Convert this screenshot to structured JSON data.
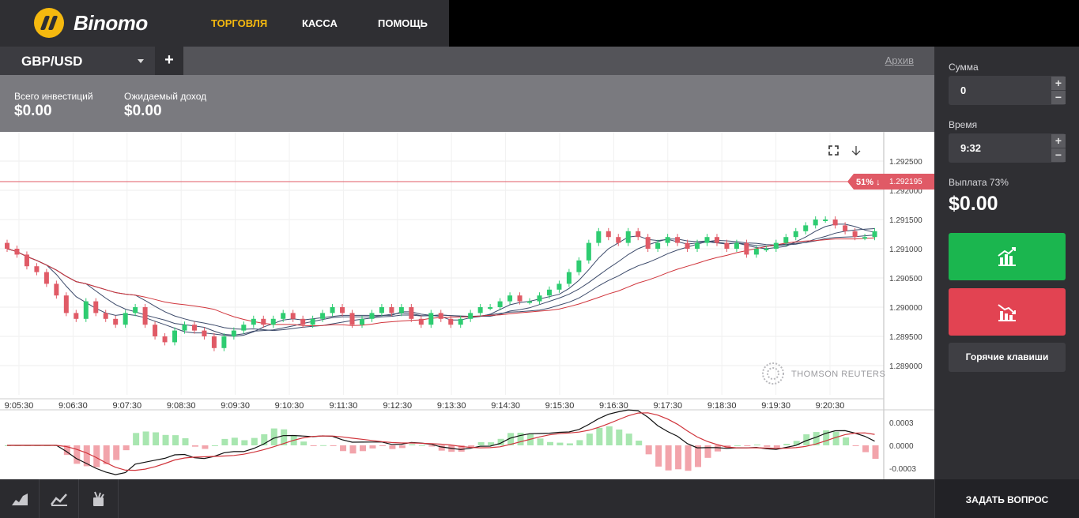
{
  "app": {
    "name": "Binomo",
    "nav": [
      "ТОРГОВЛЯ",
      "КАССА",
      "ПОМОЩЬ"
    ]
  },
  "instrument": {
    "pair": "GBP/USD",
    "add_label": "+",
    "archive": "Архив"
  },
  "stats": {
    "total_label": "Всего инвестиций",
    "total_value": "$0.00",
    "income_label": "Ожидаемый доход",
    "income_value": "$0.00"
  },
  "chart": {
    "y_ticks": [
      "1.292500",
      "1.292000",
      "1.291500",
      "1.291000",
      "1.290500",
      "1.290000",
      "1.289500",
      "1.289000"
    ],
    "x_ticks": [
      "9:05:30",
      "9:06:30",
      "9:07:30",
      "9:08:30",
      "9:09:30",
      "9:10:30",
      "9:11:30",
      "9:12:30",
      "9:13:30",
      "9:14:30",
      "9:15:30",
      "9:16:30",
      "9:17:30",
      "9:18:30",
      "9:19:30",
      "9:20:30"
    ],
    "price_badge": {
      "percent": "51% ↓",
      "price": "1.292195"
    },
    "watermark": "THOMSON REUTERS",
    "macd_ticks": [
      "0.0003",
      "0.0000",
      "-0.0003"
    ],
    "colors": {
      "up": "#2ecc71",
      "down": "#e05a66",
      "ma": "#3c4a6a",
      "signal": "#d0343b"
    }
  },
  "chart_data": {
    "type": "candlestick",
    "y_range": [
      1.2885,
      1.293
    ],
    "x_labels": [
      "9:05:30",
      "9:06:30",
      "9:07:30",
      "9:08:30",
      "9:09:30",
      "9:10:30",
      "9:11:30",
      "9:12:30",
      "9:13:30",
      "9:14:30",
      "9:15:30",
      "9:16:30",
      "9:17:30",
      "9:18:30",
      "9:19:30",
      "9:20:30"
    ],
    "current_price": 1.292195,
    "closes": [
      1.291,
      1.2909,
      1.2907,
      1.2906,
      1.2904,
      1.2902,
      1.2899,
      1.2898,
      1.2901,
      1.2899,
      1.2898,
      1.2897,
      1.2899,
      1.29,
      1.2897,
      1.2895,
      1.2894,
      1.2896,
      1.2897,
      1.2896,
      1.2895,
      1.2893,
      1.2895,
      1.2896,
      1.2897,
      1.2898,
      1.2897,
      1.2898,
      1.2899,
      1.2898,
      1.2897,
      1.2898,
      1.2899,
      1.29,
      1.2899,
      1.2897,
      1.2898,
      1.2899,
      1.29,
      1.2899,
      1.29,
      1.2898,
      1.2897,
      1.2899,
      1.2898,
      1.2897,
      1.2898,
      1.2899,
      1.29,
      1.29,
      1.2901,
      1.2902,
      1.2901,
      1.2901,
      1.2902,
      1.2903,
      1.2904,
      1.2906,
      1.2908,
      1.2911,
      1.2913,
      1.2912,
      1.2911,
      1.2913,
      1.2912,
      1.291,
      1.2911,
      1.2912,
      1.2911,
      1.291,
      1.2911,
      1.2912,
      1.2911,
      1.291,
      1.2911,
      1.2909,
      1.291,
      1.291,
      1.2911,
      1.2912,
      1.2913,
      1.2914,
      1.2915,
      1.2915,
      1.2914,
      1.2913,
      1.2912,
      1.2912,
      1.2913
    ],
    "macd_range": [
      -0.00045,
      0.00045
    ]
  },
  "panel": {
    "amount_label": "Сумма",
    "amount_value": "0",
    "time_label": "Время",
    "time_value": "9:32",
    "payout_label": "Выплата 73%",
    "payout_value": "$0.00",
    "hotkeys": "Горячие клавиши"
  },
  "bottom": {
    "ask": "ЗАДАТЬ ВОПРОС"
  }
}
